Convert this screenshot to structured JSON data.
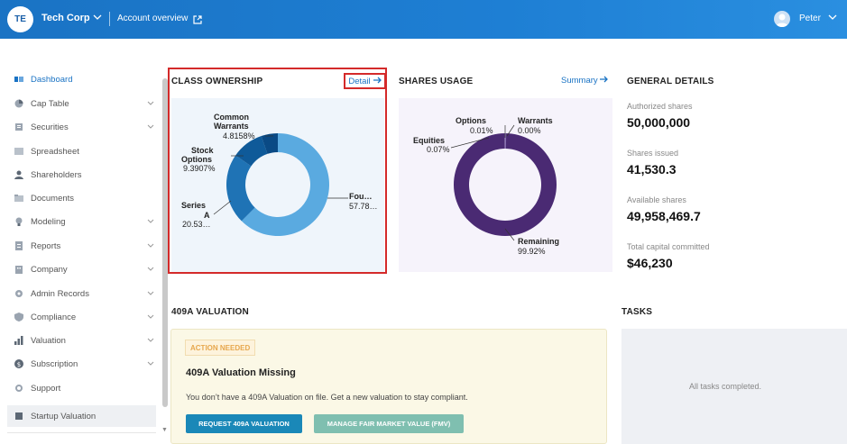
{
  "header": {
    "avatar_initials": "TE",
    "company_name": "Tech Corp",
    "account_overview": "Account overview",
    "user_name": "Peter"
  },
  "sidebar": {
    "items": [
      {
        "label": "Dashboard",
        "icon": "dashboard-icon",
        "active": true,
        "has_chevron": false
      },
      {
        "label": "Cap Table",
        "icon": "pie-icon",
        "has_chevron": true
      },
      {
        "label": "Securities",
        "icon": "securities-icon",
        "has_chevron": true
      },
      {
        "label": "Spreadsheet",
        "icon": "spreadsheet-icon",
        "has_chevron": false
      },
      {
        "label": "Shareholders",
        "icon": "person-icon",
        "has_chevron": false
      },
      {
        "label": "Documents",
        "icon": "documents-icon",
        "has_chevron": false
      },
      {
        "label": "Modeling",
        "icon": "bulb-icon",
        "has_chevron": true
      },
      {
        "label": "Reports",
        "icon": "reports-icon",
        "has_chevron": true
      },
      {
        "label": "Company",
        "icon": "company-icon",
        "has_chevron": true
      },
      {
        "label": "Admin Records",
        "icon": "gear-icon",
        "has_chevron": true
      },
      {
        "label": "Compliance",
        "icon": "shield-icon",
        "has_chevron": true
      },
      {
        "label": "Valuation",
        "icon": "bar-chart-icon",
        "has_chevron": true
      },
      {
        "label": "Subscription",
        "icon": "dollar-icon",
        "has_chevron": true
      },
      {
        "label": "Support",
        "icon": "support-icon",
        "has_chevron": false
      },
      {
        "label": "Startup Valuation",
        "icon": "startup-icon",
        "selected": true,
        "has_chevron": false
      }
    ]
  },
  "class_ownership": {
    "title": "CLASS OWNERSHIP",
    "detail_label": "Detail",
    "labels": {
      "common_name_1": "Common",
      "common_name_2": "Warrants",
      "common_value": "4.8158%",
      "stock_name_1": "Stock",
      "stock_name_2": "Options",
      "stock_value": "9.3907%",
      "series_name_1": "Series",
      "series_name_2": "A",
      "series_value": "20.53…",
      "founder_name": "Fou…",
      "founder_value": "57.78…"
    }
  },
  "shares_usage": {
    "title": "SHARES USAGE",
    "summary_label": "Summary",
    "labels": {
      "options_name": "Options",
      "options_value": "0.01%",
      "warrants_name": "Warrants",
      "warrants_value": "0.00%",
      "equities_name": "Equities",
      "equities_value": "0.07%",
      "remaining_name": "Remaining",
      "remaining_value": "99.92%"
    }
  },
  "chart_data": [
    {
      "type": "pie",
      "donut": true,
      "title": "CLASS OWNERSHIP",
      "series": [
        {
          "name": "Founder",
          "value": 57.78,
          "color": "#5aaae0"
        },
        {
          "name": "Series A",
          "value": 20.53,
          "color": "#1f73b5"
        },
        {
          "name": "Stock Options",
          "value": 9.3907,
          "color": "#0f5a99"
        },
        {
          "name": "Common Warrants",
          "value": 4.8158,
          "color": "#0a4a85"
        }
      ]
    },
    {
      "type": "pie",
      "donut": true,
      "title": "SHARES USAGE",
      "series": [
        {
          "name": "Remaining",
          "value": 99.92,
          "color": "#4a2a73"
        },
        {
          "name": "Equities",
          "value": 0.07,
          "color": "#b7a6d6"
        },
        {
          "name": "Options",
          "value": 0.01,
          "color": "#9e89c8"
        },
        {
          "name": "Warrants",
          "value": 0.0,
          "color": "#8c76bd"
        }
      ]
    }
  ],
  "general_details": {
    "title": "GENERAL DETAILS",
    "authorized_label": "Authorized shares",
    "authorized_value": "50,000,000",
    "issued_label": "Shares issued",
    "issued_value": "41,530.3",
    "available_label": "Available shares",
    "available_value": "49,958,469.7",
    "capital_label": "Total capital committed",
    "capital_value": "$46,230"
  },
  "valuation": {
    "title": "409A VALUATION",
    "badge": "ACTION NEEDED",
    "heading": "409A Valuation Missing",
    "description": "You don’t have a 409A Valuation on file. Get a new valuation to stay compliant.",
    "request_button": "REQUEST 409A VALUATION",
    "fmv_button": "MANAGE FAIR MARKET VALUE (FMV)"
  },
  "tasks": {
    "title": "TASKS",
    "empty_text": "All tasks completed."
  }
}
